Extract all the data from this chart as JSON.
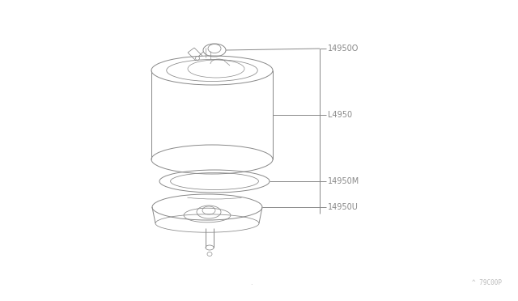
{
  "bg_color": "#ffffff",
  "line_color": "#888888",
  "text_color": "#888888",
  "watermark_color": "#bbbbbb",
  "watermark_text": "^ 79C00P",
  "small_dot": ".",
  "label_14950O": "14950O",
  "label_14950": "L4950",
  "label_14950M": "14950M",
  "label_14950U": "14950U",
  "figsize": [
    6.4,
    3.72
  ],
  "dpi": 100
}
